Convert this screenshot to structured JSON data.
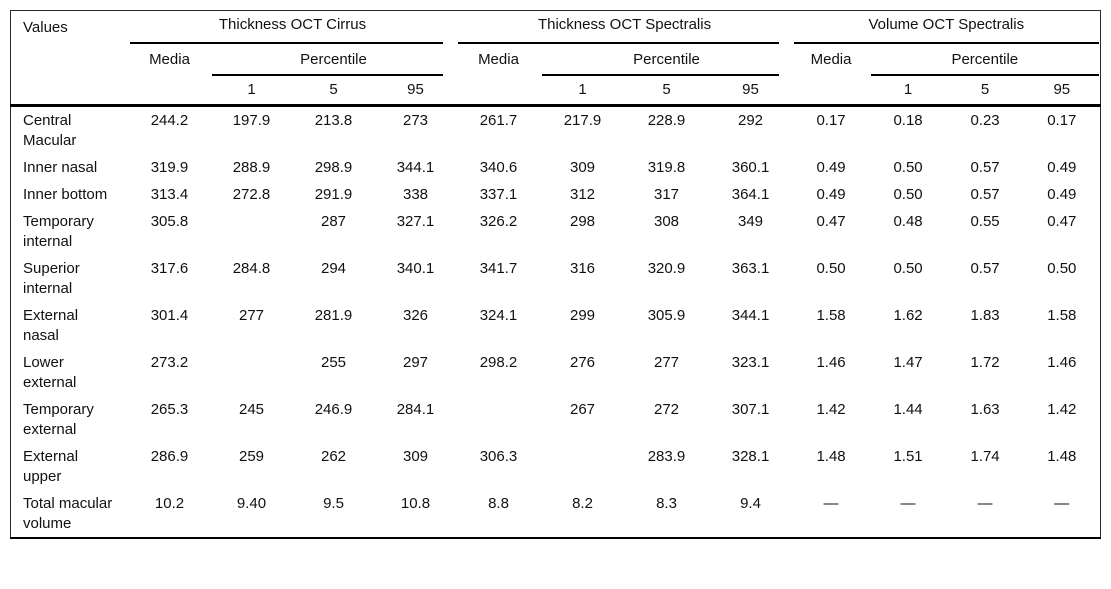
{
  "table": {
    "corner_label": "Values",
    "groups": [
      {
        "title": "Thickness OCT Cirrus",
        "media_label": "Media",
        "percentile_label": "Percentile",
        "percentile_cols": [
          "1",
          "5",
          "95"
        ]
      },
      {
        "title": "Thickness OCT Spectralis",
        "media_label": "Media",
        "percentile_label": "Percentile",
        "percentile_cols": [
          "1",
          "5",
          "95"
        ]
      },
      {
        "title": "Volume OCT Spectralis",
        "media_label": "Media",
        "percentile_label": "Percentile",
        "percentile_cols": [
          "1",
          "5",
          "95"
        ]
      }
    ],
    "rows": [
      {
        "label": "Central Macular",
        "cells": [
          "244.2",
          "197.9",
          "213.8",
          "273",
          "261.7",
          "217.9",
          "228.9",
          "292",
          "0.17",
          "0.18",
          "0.23",
          "0.17"
        ]
      },
      {
        "label": "Inner nasal",
        "cells": [
          "319.9",
          "288.9",
          "298.9",
          "344.1",
          "340.6",
          "309",
          "319.8",
          "360.1",
          "0.49",
          "0.50",
          "0.57",
          "0.49"
        ]
      },
      {
        "label": "Inner bottom",
        "cells": [
          "313.4",
          "272.8",
          "291.9",
          "338",
          "337.1",
          "312",
          "317",
          "364.1",
          "0.49",
          "0.50",
          "0.57",
          "0.49"
        ]
      },
      {
        "label": "Temporary internal",
        "cells": [
          "305.8",
          "",
          "287",
          "327.1",
          "326.2",
          "298",
          "308",
          "349",
          "0.47",
          "0.48",
          "0.55",
          "0.47"
        ]
      },
      {
        "label": "Superior internal",
        "cells": [
          "317.6",
          "284.8",
          "294",
          "340.1",
          "341.7",
          "316",
          "320.9",
          "363.1",
          "0.50",
          "0.50",
          "0.57",
          "0.50"
        ]
      },
      {
        "label": "External nasal",
        "cells": [
          "301.4",
          "277",
          "281.9",
          "326",
          "324.1",
          "299",
          "305.9",
          "344.1",
          "1.58",
          "1.62",
          "1.83",
          "1.58"
        ]
      },
      {
        "label": "Lower external",
        "cells": [
          "273.2",
          "",
          "255",
          "297",
          "298.2",
          "276",
          "277",
          "323.1",
          "1.46",
          "1.47",
          "1.72",
          "1.46"
        ]
      },
      {
        "label": "Temporary external",
        "cells": [
          "265.3",
          "245",
          "246.9",
          "284.1",
          "",
          "267",
          "272",
          "307.1",
          "1.42",
          "1.44",
          "1.63",
          "1.42"
        ]
      },
      {
        "label": "External upper",
        "cells": [
          "286.9",
          "259",
          "262",
          "309",
          "306.3",
          "",
          "283.9",
          "328.1",
          "1.48",
          "1.51",
          "1.74",
          "1.48"
        ]
      },
      {
        "label": "Total macular volume",
        "cells": [
          "10.2",
          "9.40",
          "9.5",
          "10.8",
          "8.8",
          "8.2",
          "8.3",
          "9.4",
          "—",
          "—",
          "—",
          "—"
        ]
      }
    ]
  }
}
